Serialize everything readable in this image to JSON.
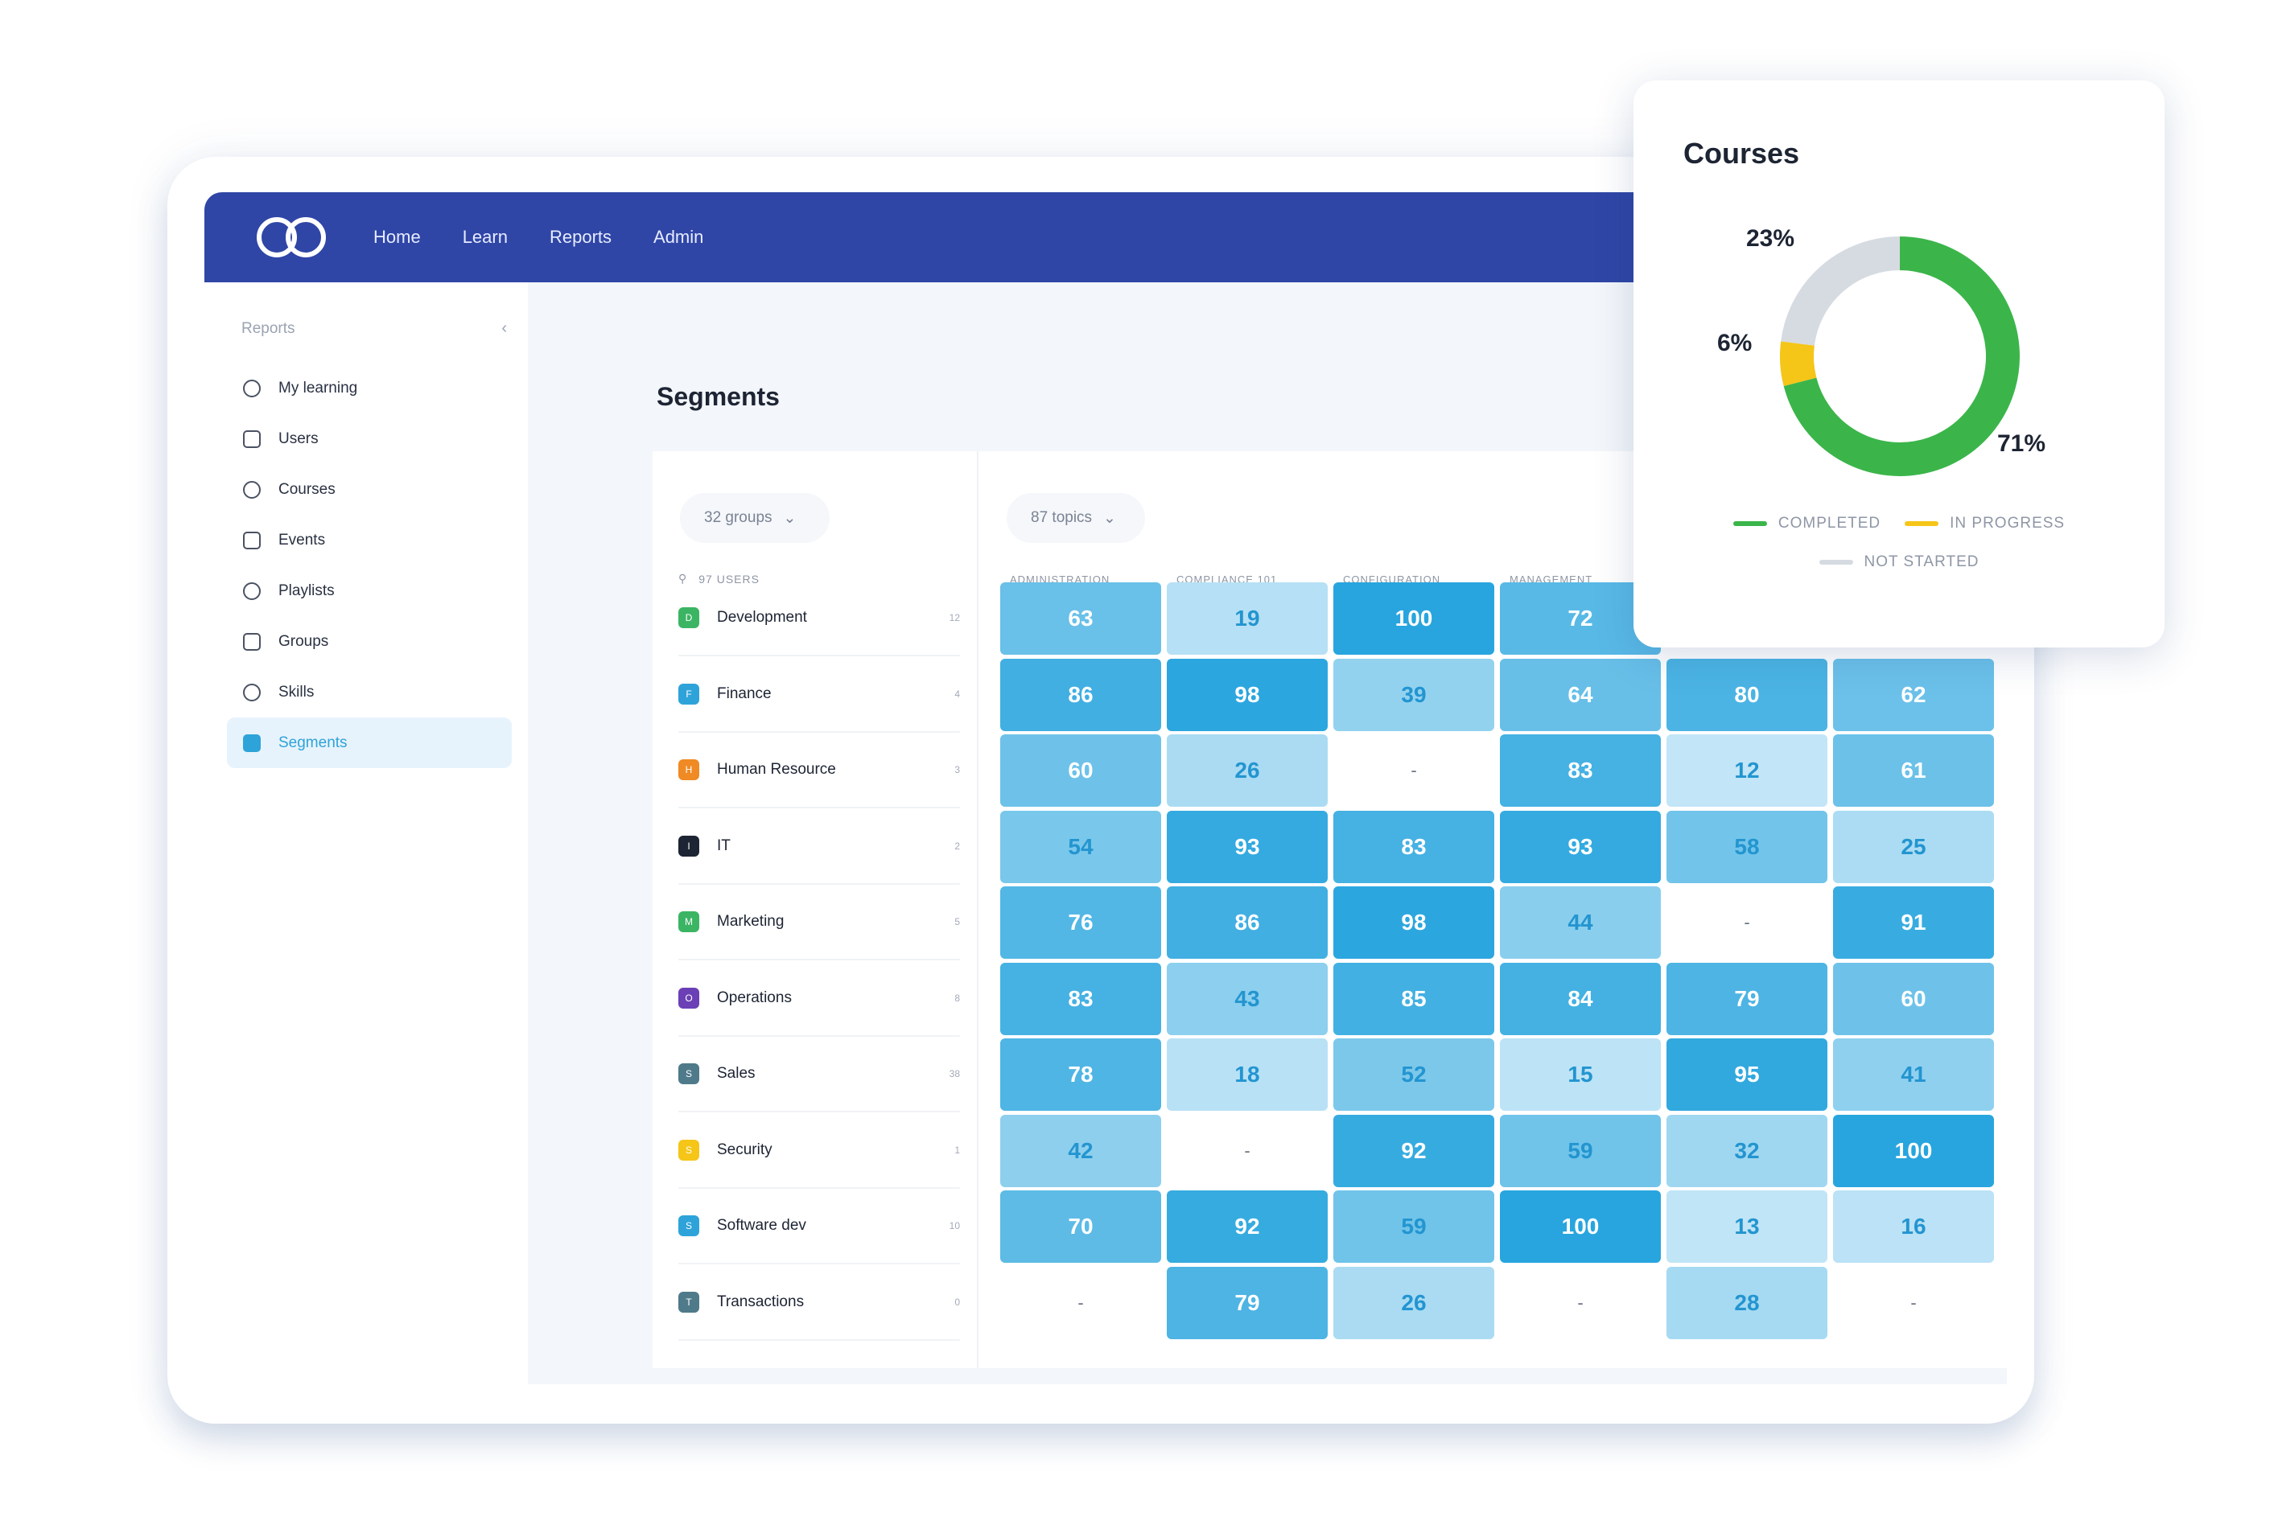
{
  "nav": {
    "items": [
      "Home",
      "Learn",
      "Reports",
      "Admin"
    ]
  },
  "sidebar": {
    "title": "Reports",
    "items": [
      {
        "label": "My learning",
        "icon": "learning-icon"
      },
      {
        "label": "Users",
        "icon": "users-icon"
      },
      {
        "label": "Courses",
        "icon": "book-icon"
      },
      {
        "label": "Events",
        "icon": "calendar-icon"
      },
      {
        "label": "Playlists",
        "icon": "playlist-icon"
      },
      {
        "label": "Groups",
        "icon": "groups-icon"
      },
      {
        "label": "Skills",
        "icon": "skills-icon"
      },
      {
        "label": "Segments",
        "icon": "segments-icon",
        "active": true
      }
    ]
  },
  "page": {
    "title": "Segments"
  },
  "filters": {
    "groups": "32 groups",
    "topics": "87 topics",
    "users": "97 USERS"
  },
  "columns": [
    "ADMINISTRATION",
    "COMPLIANCE 101",
    "CONFIGURATION",
    "MANAGEMENT"
  ],
  "groups": [
    {
      "name": "Development",
      "letter": "D",
      "color": "#3bb563",
      "count": "12"
    },
    {
      "name": "Finance",
      "letter": "F",
      "color": "#2ea3d9",
      "count": "4"
    },
    {
      "name": "Human Resource",
      "letter": "H",
      "color": "#f08a24",
      "count": "3"
    },
    {
      "name": "IT",
      "letter": "I",
      "color": "#1d2433",
      "count": "2"
    },
    {
      "name": "Marketing",
      "letter": "M",
      "color": "#3bb563",
      "count": "5"
    },
    {
      "name": "Operations",
      "letter": "O",
      "color": "#6b3fb5",
      "count": "8"
    },
    {
      "name": "Sales",
      "letter": "S",
      "color": "#4f7a8a",
      "count": "38"
    },
    {
      "name": "Security",
      "letter": "S",
      "color": "#f5c518",
      "count": "1"
    },
    {
      "name": "Software dev",
      "letter": "S",
      "color": "#2ea3d9",
      "count": "10"
    },
    {
      "name": "Transactions",
      "letter": "T",
      "color": "#4f7a8a",
      "count": "0"
    }
  ],
  "matrix": [
    [
      "63",
      "19",
      "100",
      "72",
      "",
      ""
    ],
    [
      "86",
      "98",
      "39",
      "64",
      "80",
      "62"
    ],
    [
      "60",
      "26",
      "-",
      "83",
      "12",
      "61"
    ],
    [
      "54",
      "93",
      "83",
      "93",
      "58",
      "25"
    ],
    [
      "76",
      "86",
      "98",
      "44",
      "-",
      "91"
    ],
    [
      "83",
      "43",
      "85",
      "84",
      "79",
      "60"
    ],
    [
      "78",
      "18",
      "52",
      "15",
      "95",
      "41"
    ],
    [
      "42",
      "-",
      "92",
      "59",
      "32",
      "100"
    ],
    [
      "70",
      "92",
      "59",
      "100",
      "13",
      "16"
    ],
    [
      "-",
      "79",
      "26",
      "-",
      "28",
      "-"
    ]
  ],
  "courses": {
    "title": "Courses",
    "chart_data": {
      "type": "pie",
      "categories": [
        "COMPLETED",
        "IN PROGRESS",
        "NOT STARTED"
      ],
      "values": [
        71,
        6,
        23
      ],
      "labels": [
        "71%",
        "6%",
        "23%"
      ],
      "colors": [
        "#3bb54a",
        "#f5c518",
        "#d6dbe1"
      ]
    }
  }
}
